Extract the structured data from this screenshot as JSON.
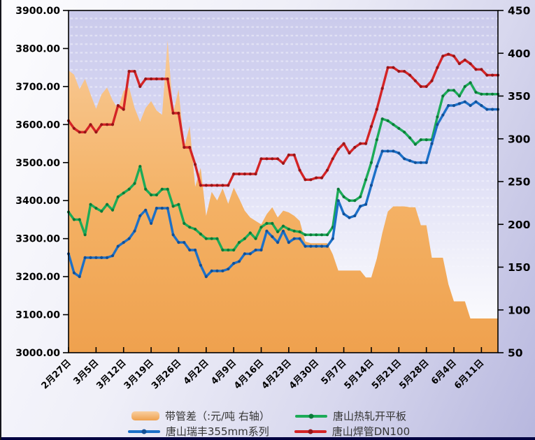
{
  "chart_data": {
    "type": "combo-area-line",
    "title": "",
    "x_tick_labels": [
      "2月27日",
      "3月5日",
      "3月12日",
      "3月19日",
      "3月26日",
      "4月2日",
      "4月9日",
      "4月16日",
      "4月23日",
      "4月30日",
      "5月7日",
      "5月14日",
      "5月21日",
      "5月28日",
      "6月4日",
      "6月11日"
    ],
    "points_per_tick": 5,
    "left_axis": {
      "min": 3000,
      "max": 3900,
      "tick_step": 100,
      "labels": [
        "3900.00",
        "3800.00",
        "3700.00",
        "3600.00",
        "3500.00",
        "3400.00",
        "3300.00",
        "3200.00",
        "3100.00",
        "3000.00"
      ]
    },
    "right_axis": {
      "min": 50,
      "max": 450,
      "tick_step": 50,
      "labels": [
        "450",
        "400",
        "350",
        "300",
        "250",
        "200",
        "150",
        "100",
        "50"
      ]
    },
    "legend_position": "bottom",
    "plot_bg_top": "#cacaeb",
    "plot_bg_bottom": "#ffffff",
    "series": [
      {
        "name": "带管差（:元/吨 右轴）",
        "type": "area",
        "axis": "right",
        "color": "#F4B266",
        "color_top": "#F9CFA0",
        "color_bottom": "#EFA14E",
        "values": [
          380,
          375,
          358,
          370,
          352,
          335,
          352,
          360,
          345,
          335,
          356,
          360,
          336,
          320,
          336,
          344,
          333,
          328,
          415,
          330,
          358,
          290,
          315,
          244,
          266,
          210,
          238,
          228,
          242,
          224,
          243,
          230,
          216,
          208,
          204,
          200,
          212,
          220,
          208,
          216,
          214,
          210,
          204,
          180,
          178,
          178,
          178,
          178,
          165,
          146,
          146,
          146,
          146,
          146,
          138,
          138,
          160,
          190,
          215,
          221,
          221,
          221,
          220,
          220,
          199,
          199,
          161,
          161,
          161,
          130,
          110,
          110,
          110,
          90,
          90,
          90,
          90,
          90,
          90
        ]
      },
      {
        "name": "唐山热轧开平板",
        "type": "line",
        "axis": "left",
        "color": "#1CAB58",
        "marker_color": "#0B7A38",
        "values": [
          3370,
          3350,
          3350,
          3310,
          3390,
          3380,
          3372,
          3390,
          3375,
          3410,
          3420,
          3430,
          3445,
          3490,
          3430,
          3415,
          3415,
          3430,
          3430,
          3385,
          3390,
          3340,
          3330,
          3325,
          3312,
          3300,
          3300,
          3300,
          3270,
          3270,
          3270,
          3290,
          3300,
          3315,
          3300,
          3330,
          3340,
          3340,
          3318,
          3333,
          3325,
          3320,
          3318,
          3310,
          3310,
          3310,
          3310,
          3310,
          3330,
          3430,
          3410,
          3400,
          3400,
          3410,
          3455,
          3500,
          3560,
          3615,
          3610,
          3600,
          3590,
          3580,
          3565,
          3548,
          3560,
          3560,
          3560,
          3620,
          3675,
          3690,
          3690,
          3675,
          3700,
          3710,
          3685,
          3680,
          3680,
          3680,
          3680
        ]
      },
      {
        "name": "唐山瑞丰355mm系列",
        "type": "line",
        "axis": "left",
        "color": "#1C70C8",
        "marker_color": "#124F96",
        "values": [
          3260,
          3210,
          3200,
          3250,
          3250,
          3250,
          3250,
          3250,
          3255,
          3280,
          3290,
          3300,
          3320,
          3360,
          3375,
          3340,
          3380,
          3380,
          3380,
          3310,
          3290,
          3290,
          3270,
          3270,
          3230,
          3200,
          3215,
          3215,
          3215,
          3220,
          3235,
          3240,
          3260,
          3260,
          3270,
          3270,
          3320,
          3305,
          3290,
          3320,
          3290,
          3300,
          3300,
          3280,
          3280,
          3280,
          3280,
          3280,
          3300,
          3400,
          3365,
          3355,
          3360,
          3385,
          3390,
          3440,
          3490,
          3530,
          3530,
          3530,
          3525,
          3510,
          3505,
          3500,
          3500,
          3500,
          3550,
          3600,
          3625,
          3650,
          3650,
          3655,
          3660,
          3650,
          3660,
          3650,
          3640,
          3640,
          3640
        ]
      },
      {
        "name": "唐山焊管DN100",
        "type": "line",
        "axis": "left",
        "color": "#D42426",
        "marker_color": "#961518",
        "values": [
          3610,
          3590,
          3580,
          3580,
          3600,
          3580,
          3600,
          3600,
          3600,
          3650,
          3640,
          3740,
          3740,
          3700,
          3720,
          3720,
          3720,
          3720,
          3720,
          3630,
          3630,
          3540,
          3540,
          3495,
          3440,
          3440,
          3440,
          3440,
          3440,
          3440,
          3470,
          3470,
          3470,
          3470,
          3470,
          3510,
          3510,
          3510,
          3510,
          3498,
          3520,
          3520,
          3480,
          3455,
          3455,
          3460,
          3460,
          3480,
          3510,
          3535,
          3550,
          3525,
          3540,
          3550,
          3550,
          3595,
          3640,
          3695,
          3750,
          3750,
          3740,
          3740,
          3730,
          3715,
          3700,
          3700,
          3715,
          3750,
          3780,
          3785,
          3780,
          3760,
          3770,
          3760,
          3745,
          3745,
          3730,
          3730,
          3730
        ]
      }
    ]
  }
}
